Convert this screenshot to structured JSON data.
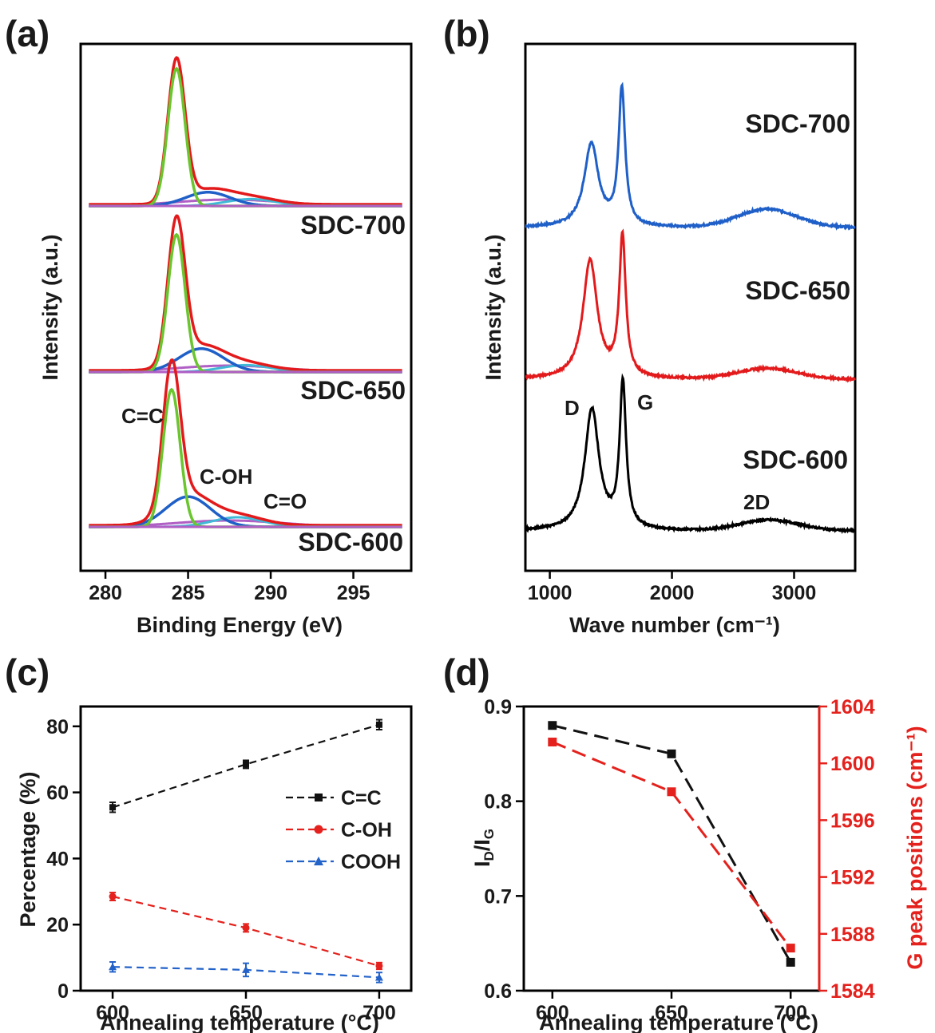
{
  "panels": {
    "a": "(a)",
    "b": "(b)",
    "c": "(c)",
    "d": "(d)"
  },
  "colors": {
    "black": "#000000",
    "red": "#e31a1c",
    "blue": "#1f5fc8",
    "green": "#6ac52f",
    "cyan": "#3fb9d6",
    "magenta": "#b05fc4",
    "c_black": "#111111",
    "c_red": "#e4211c",
    "c_blue": "#2362c9"
  },
  "chart_data": [
    {
      "id": "a",
      "type": "line",
      "title": "",
      "xlabel": "Binding Energy (eV)",
      "ylabel": "Intensity (a.u.)",
      "xlim": [
        278.5,
        298.5
      ],
      "xticks": [
        280,
        285,
        290,
        295
      ],
      "grid": false,
      "samples": [
        {
          "name": "SDC-700",
          "baseline": 0.0,
          "peaks": [
            {
              "label": "C=C",
              "center": 284.3,
              "height": 1.0
            },
            {
              "label": "C-OH",
              "center": 286.2,
              "height": 0.1
            },
            {
              "label": "C=O",
              "center": 288.8,
              "height": 0.05
            }
          ]
        },
        {
          "name": "SDC-650",
          "baseline": 0.0,
          "peaks": [
            {
              "label": "C=C",
              "center": 284.3,
              "height": 1.0
            },
            {
              "label": "C-OH",
              "center": 285.8,
              "height": 0.17
            },
            {
              "label": "C=O",
              "center": 288.5,
              "height": 0.05
            }
          ]
        },
        {
          "name": "SDC-600",
          "baseline": 0.0,
          "peaks": [
            {
              "label": "C=C",
              "center": 284.0,
              "height": 1.0
            },
            {
              "label": "C-OH",
              "center": 285.0,
              "height": 0.22
            },
            {
              "label": "C=O",
              "center": 288.0,
              "height": 0.07
            }
          ]
        }
      ],
      "annotations": [
        "C=C",
        "C-OH",
        "C=O"
      ]
    },
    {
      "id": "b",
      "type": "line",
      "title": "",
      "xlabel": "Wave number (cm⁻¹)",
      "ylabel": "Intensity (a.u.)",
      "xlim": [
        800,
        3500
      ],
      "xticks": [
        1000,
        2000,
        3000
      ],
      "grid": false,
      "series": [
        {
          "name": "SDC-700",
          "color": "#1f5fc8",
          "D": {
            "x": 1340,
            "height": 0.55
          },
          "G": {
            "x": 1590,
            "height": 0.9
          },
          "2D": {
            "x": 2780,
            "height": 0.12
          }
        },
        {
          "name": "SDC-650",
          "color": "#e31a1c",
          "D": {
            "x": 1330,
            "height": 0.78
          },
          "G": {
            "x": 1595,
            "height": 0.92
          },
          "2D": {
            "x": 2780,
            "height": 0.07
          }
        },
        {
          "name": "SDC-600",
          "color": "#000000",
          "D": {
            "x": 1345,
            "height": 0.8
          },
          "G": {
            "x": 1598,
            "height": 0.95
          },
          "2D": {
            "x": 2800,
            "height": 0.07
          }
        }
      ],
      "annotations": [
        "D",
        "G",
        "2D"
      ]
    },
    {
      "id": "c",
      "type": "line",
      "title": "",
      "xlabel": "Annealing temperature (°C)",
      "ylabel": "Percentage (%)",
      "x": [
        600,
        650,
        700
      ],
      "xlim": [
        588,
        712
      ],
      "ylim": [
        0,
        86
      ],
      "xticks": [
        600,
        650,
        700
      ],
      "yticks": [
        0,
        20,
        40,
        60,
        80
      ],
      "legend": "center-right",
      "series": [
        {
          "name": "C=C",
          "marker": "square",
          "color": "#111111",
          "values": [
            55.5,
            68.5,
            80.5
          ],
          "errors": [
            1.5,
            1.2,
            1.5
          ]
        },
        {
          "name": "C-OH",
          "marker": "circle",
          "color": "#e4211c",
          "values": [
            28.5,
            19.0,
            7.5
          ],
          "errors": [
            1.2,
            1.2,
            1.0
          ]
        },
        {
          "name": "COOH",
          "marker": "triangle",
          "color": "#2362c9",
          "values": [
            7.2,
            6.3,
            4.0
          ],
          "errors": [
            1.5,
            2.0,
            1.5
          ]
        }
      ]
    },
    {
      "id": "d",
      "type": "line",
      "title": "",
      "xlabel": "Annealing temperature (°C)",
      "ylabel_left": "ID/IG",
      "ylabel_right": "G peak positions (cm⁻¹)",
      "x": [
        600,
        650,
        700
      ],
      "xlim": [
        588,
        712
      ],
      "ylim_left": [
        0.6,
        0.9
      ],
      "ylim_right": [
        1584,
        1604
      ],
      "xticks": [
        600,
        650,
        700
      ],
      "yticks_left": [
        0.6,
        0.7,
        0.8,
        0.9
      ],
      "yticks_right": [
        1584,
        1588,
        1592,
        1596,
        1600,
        1604
      ],
      "series": [
        {
          "name": "ID/IG",
          "axis": "left",
          "color": "#111111",
          "values": [
            0.88,
            0.85,
            0.63
          ]
        },
        {
          "name": "G peak positions",
          "axis": "right",
          "color": "#e4211c",
          "values": [
            1601.5,
            1598.0,
            1587.0
          ]
        }
      ]
    }
  ]
}
